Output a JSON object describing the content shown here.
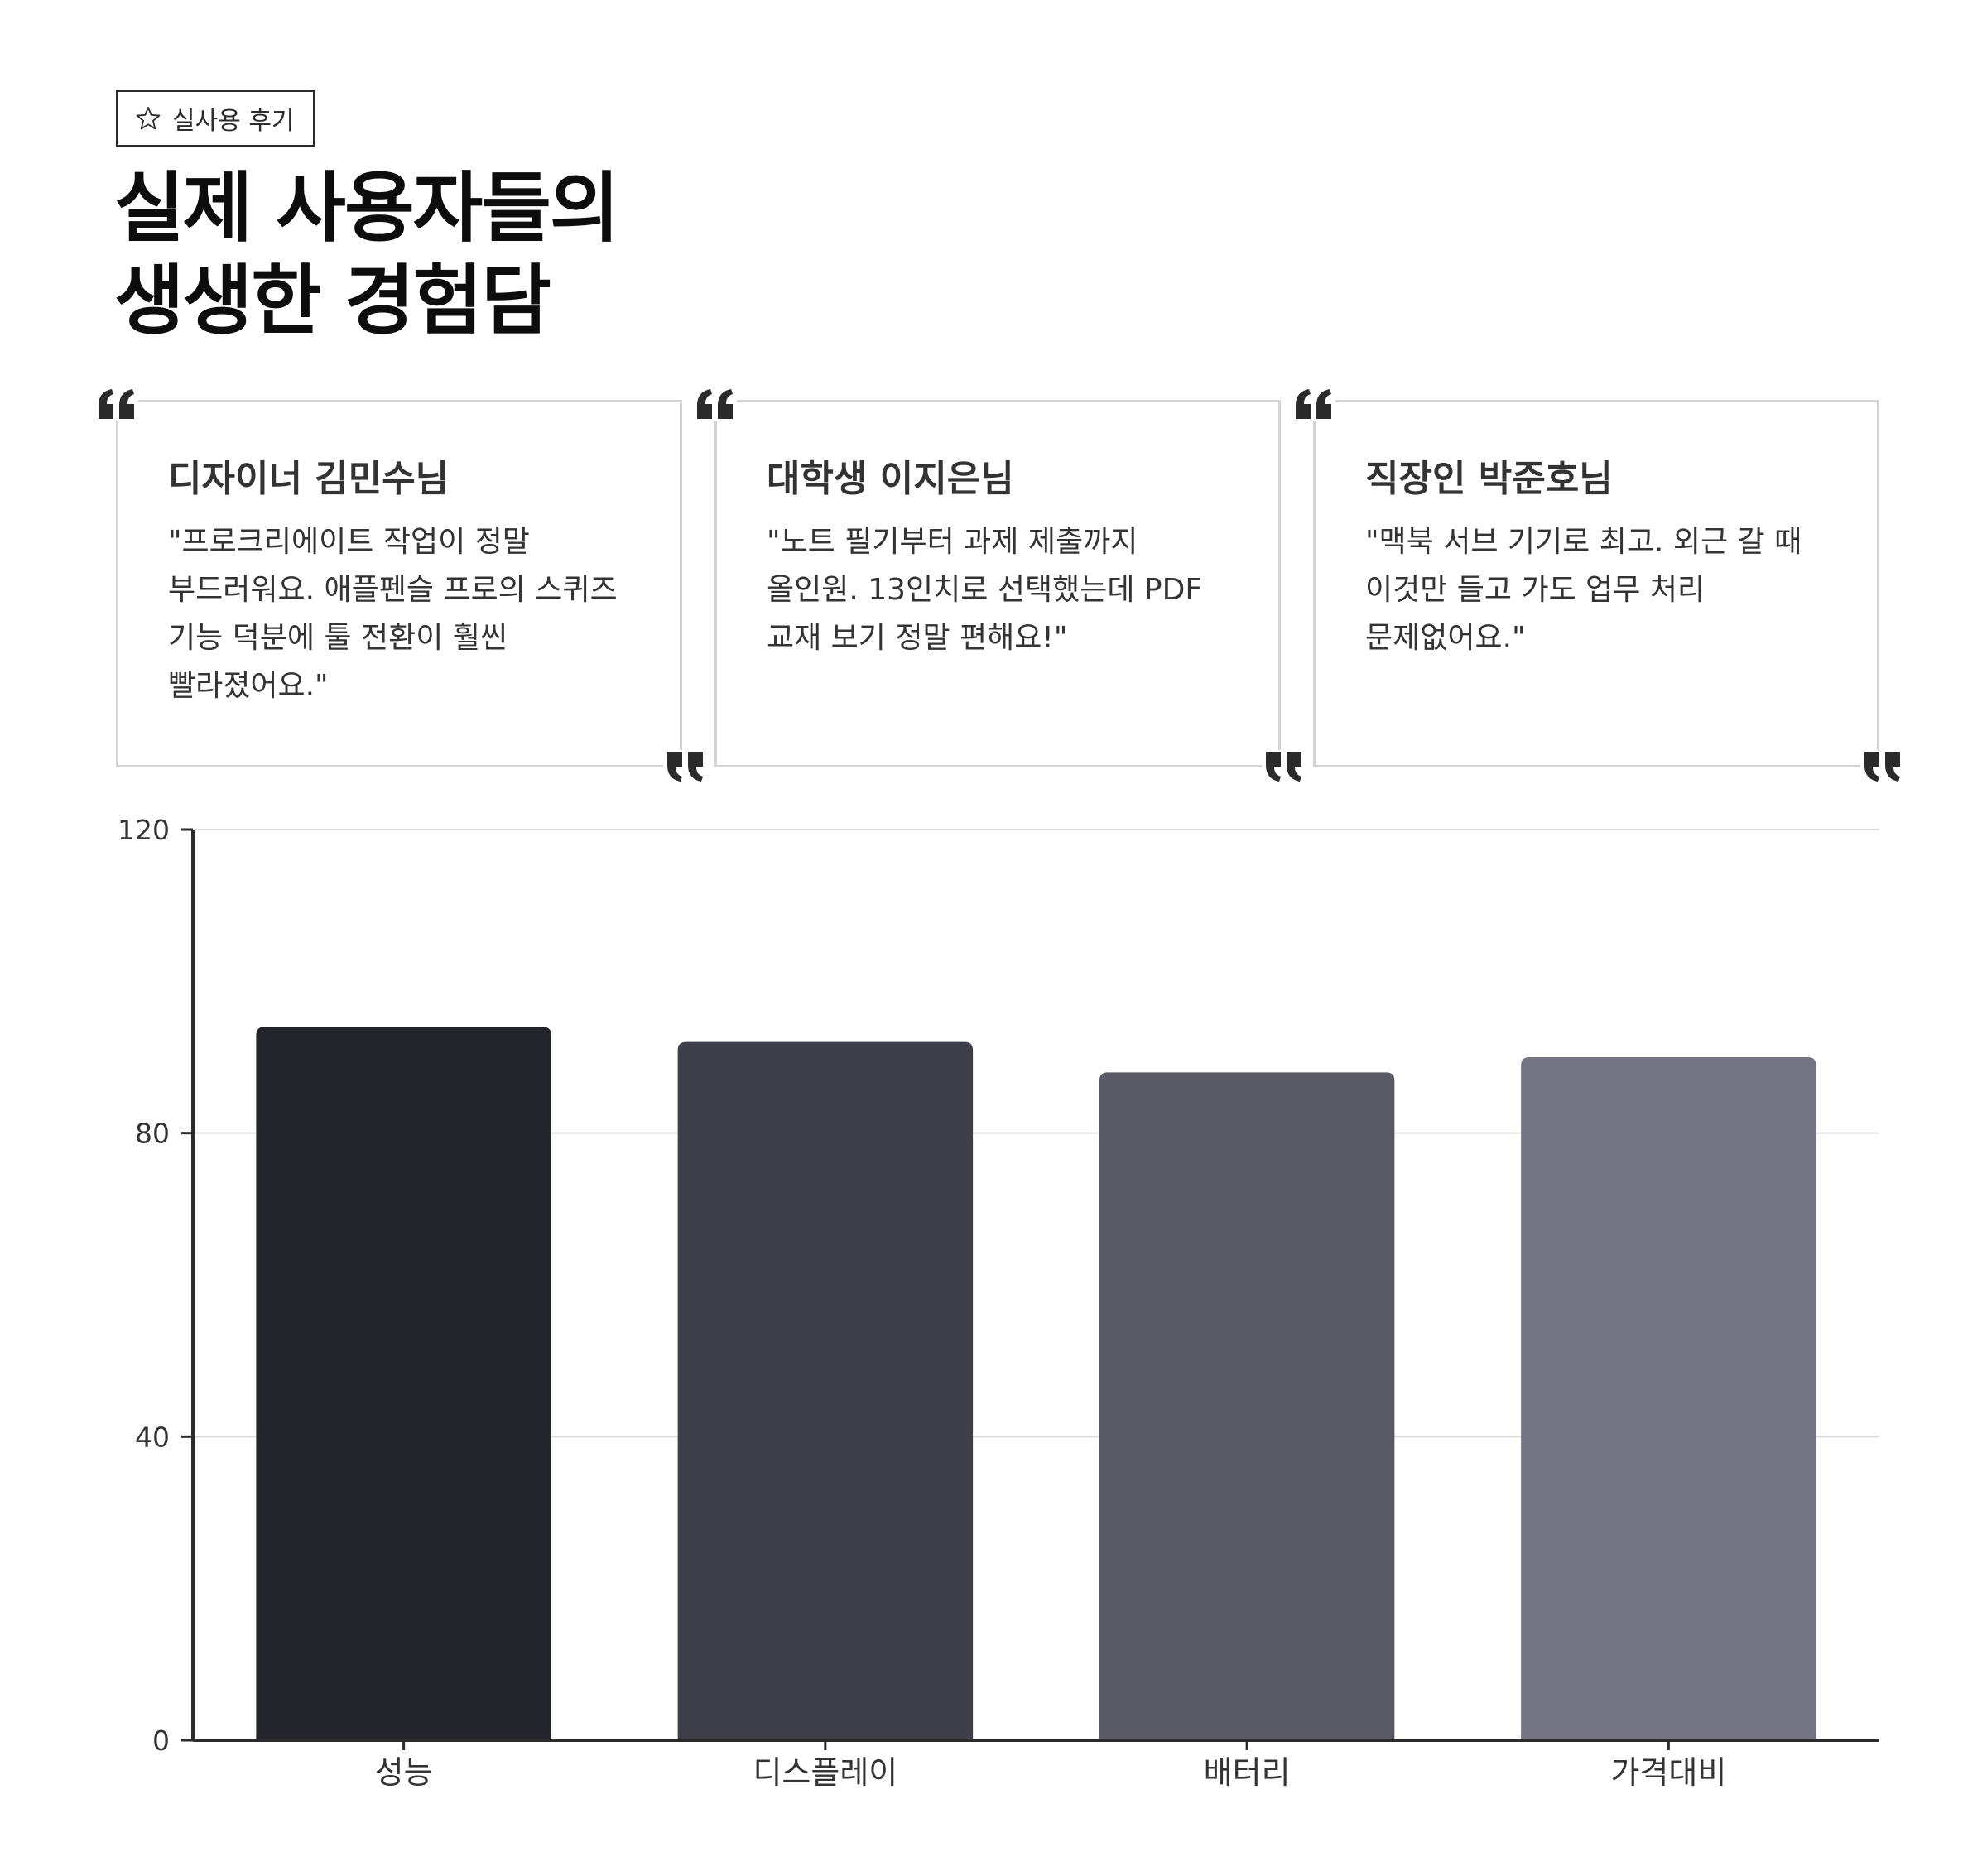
{
  "badge": {
    "label": "실사용 후기",
    "icon": "star-icon"
  },
  "headline": {
    "line1": "실제 사용자들의",
    "line2": "생생한 경험담"
  },
  "testimonials": [
    {
      "name": "디자이너 김민수님",
      "text": "\"프로크리에이트 작업이 정말 부드러워요. 애플펜슬 프로의 스퀴즈 기능 덕분에 툴 전환이 훨씬 빨라졌어요.\""
    },
    {
      "name": "대학생 이지은님",
      "text": "\"노트 필기부터 과제 제출까지 올인원. 13인치로 선택했는데 PDF 교재 보기 정말 편해요!\""
    },
    {
      "name": "직장인 박준호님",
      "text": "\"맥북 서브 기기로 최고. 외근 갈 때 이것만 들고 가도 업무 처리 문제없어요.\""
    }
  ],
  "colors": {
    "quote_mark": "#2b2b2b",
    "card_border": "#d4d4d4",
    "grid": "#dcdcdc",
    "axis": "#2b2b2b"
  },
  "chart_data": {
    "type": "bar",
    "categories": [
      "성능",
      "디스플레이",
      "배터리",
      "가격대비"
    ],
    "values": [
      94,
      92,
      88,
      90
    ],
    "bar_colors": [
      "#24252a",
      "#3f3f49",
      "#5a5a67",
      "#747482"
    ],
    "ylim": [
      0,
      120
    ],
    "yticks": [
      0,
      40,
      80,
      120
    ],
    "grid": true,
    "title": "",
    "xlabel": "",
    "ylabel": ""
  }
}
